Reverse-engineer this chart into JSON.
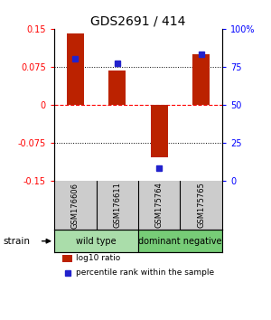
{
  "title": "GDS2691 / 414",
  "samples": [
    "GSM176606",
    "GSM176611",
    "GSM175764",
    "GSM175765"
  ],
  "log10_ratio": [
    0.141,
    0.068,
    -0.105,
    0.1
  ],
  "percentile_rank": [
    80.0,
    77.0,
    8.0,
    83.0
  ],
  "ylim_left": [
    -0.15,
    0.15
  ],
  "ylim_right": [
    0,
    100
  ],
  "yticks_left": [
    -0.15,
    -0.075,
    0,
    0.075,
    0.15
  ],
  "ytick_labels_left": [
    "-0.15",
    "-0.075",
    "0",
    "0.075",
    "0.15"
  ],
  "yticks_right": [
    0,
    25,
    50,
    75,
    100
  ],
  "ytick_labels_right": [
    "0",
    "25",
    "50",
    "75",
    "100%"
  ],
  "hlines_dotted": [
    -0.075,
    0.075
  ],
  "hline_dashed": 0,
  "bar_color": "#bb2200",
  "dot_color": "#2222cc",
  "groups": [
    {
      "label": "wild type",
      "samples": [
        0,
        1
      ],
      "color": "#aaddaa"
    },
    {
      "label": "dominant negative",
      "samples": [
        2,
        3
      ],
      "color": "#77cc77"
    }
  ],
  "strain_label": "strain",
  "legend_bar_label": "log10 ratio",
  "legend_dot_label": "percentile rank within the sample",
  "sample_box_color": "#cccccc",
  "bar_width": 0.4,
  "title_fontsize": 10,
  "tick_fontsize": 7,
  "sample_fontsize": 6,
  "group_fontsize": 7,
  "legend_fontsize": 6.5
}
